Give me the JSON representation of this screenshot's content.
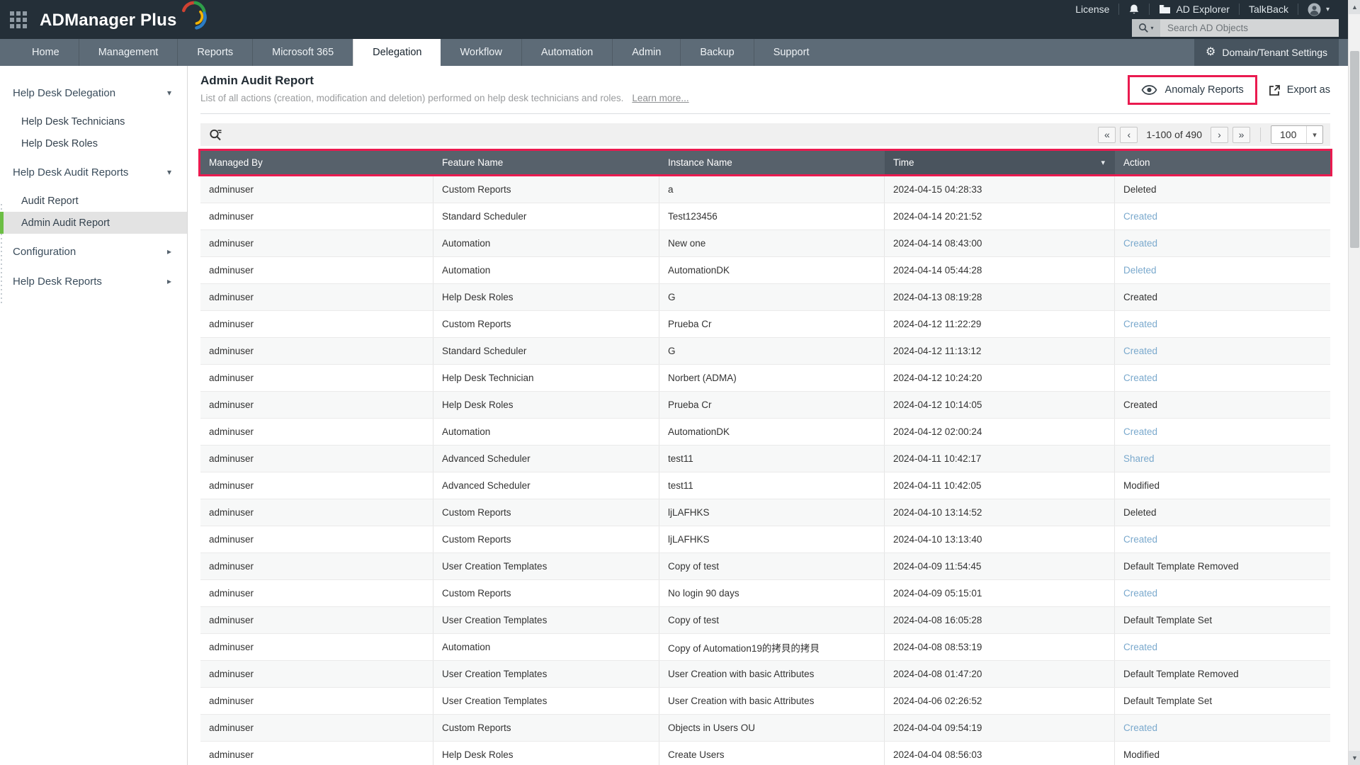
{
  "header": {
    "logo_text": "ADManager Plus",
    "license_label": "License",
    "ad_explorer_label": "AD Explorer",
    "talkback_label": "TalkBack",
    "search_placeholder": "Search AD Objects",
    "domain_settings_label": "Domain/Tenant Settings"
  },
  "nav": {
    "tabs": [
      {
        "label": "Home",
        "active": false
      },
      {
        "label": "Management",
        "active": false
      },
      {
        "label": "Reports",
        "active": false
      },
      {
        "label": "Microsoft 365",
        "active": false
      },
      {
        "label": "Delegation",
        "active": true
      },
      {
        "label": "Workflow",
        "active": false
      },
      {
        "label": "Automation",
        "active": false
      },
      {
        "label": "Admin",
        "active": false
      },
      {
        "label": "Backup",
        "active": false
      },
      {
        "label": "Support",
        "active": false
      }
    ]
  },
  "sidebar": {
    "items": [
      {
        "label": "Help Desk Delegation",
        "level": "group",
        "chevron": "down",
        "selected": false
      },
      {
        "label": "Help Desk Technicians",
        "level": "sub",
        "chevron": null,
        "selected": false,
        "first_sub": true
      },
      {
        "label": "Help Desk Roles",
        "level": "sub",
        "chevron": null,
        "selected": false
      },
      {
        "label": "Help Desk Audit Reports",
        "level": "group",
        "chevron": "down",
        "selected": false
      },
      {
        "label": "Audit Report",
        "level": "sub",
        "chevron": null,
        "selected": false,
        "first_sub": true
      },
      {
        "label": "Admin Audit Report",
        "level": "sub",
        "chevron": null,
        "selected": true
      },
      {
        "label": "Configuration",
        "level": "group",
        "chevron": "right",
        "selected": false
      },
      {
        "label": "Help Desk Reports",
        "level": "group",
        "chevron": "right",
        "selected": false
      }
    ]
  },
  "main": {
    "title": "Admin Audit Report",
    "subtitle": "List of all actions (creation, modification and deletion) performed on help desk technicians and roles.",
    "learn_more": "Learn more...",
    "anomaly_button_label": "Anomaly Reports",
    "export_button_label": "Export as",
    "pagination": {
      "first": "«",
      "prev": "‹",
      "range": "1-100 of 490",
      "next": "›",
      "last": "»",
      "page_size": "100"
    },
    "table": {
      "columns": [
        "Managed By",
        "Feature Name",
        "Instance Name",
        "Time",
        "Action"
      ],
      "sorted_column": "Time",
      "rows": [
        {
          "managed_by": "adminuser",
          "feature": "Custom Reports",
          "instance": "a",
          "time": "2024-04-15 04:28:33",
          "action": "Deleted",
          "action_is_link": false
        },
        {
          "managed_by": "adminuser",
          "feature": "Standard Scheduler",
          "instance": "Test123456",
          "time": "2024-04-14 20:21:52",
          "action": "Created",
          "action_is_link": true
        },
        {
          "managed_by": "adminuser",
          "feature": "Automation",
          "instance": "New one",
          "time": "2024-04-14 08:43:00",
          "action": "Created",
          "action_is_link": true
        },
        {
          "managed_by": "adminuser",
          "feature": "Automation",
          "instance": "AutomationDK",
          "time": "2024-04-14 05:44:28",
          "action": "Deleted",
          "action_is_link": true
        },
        {
          "managed_by": "adminuser",
          "feature": "Help Desk Roles",
          "instance": "G",
          "time": "2024-04-13 08:19:28",
          "action": "Created",
          "action_is_link": false
        },
        {
          "managed_by": "adminuser",
          "feature": "Custom Reports",
          "instance": "Prueba Cr",
          "time": "2024-04-12 11:22:29",
          "action": "Created",
          "action_is_link": true
        },
        {
          "managed_by": "adminuser",
          "feature": "Standard Scheduler",
          "instance": "G",
          "time": "2024-04-12 11:13:12",
          "action": "Created",
          "action_is_link": true
        },
        {
          "managed_by": "adminuser",
          "feature": "Help Desk Technician",
          "instance": "Norbert (ADMA)",
          "time": "2024-04-12 10:24:20",
          "action": "Created",
          "action_is_link": true
        },
        {
          "managed_by": "adminuser",
          "feature": "Help Desk Roles",
          "instance": "Prueba Cr",
          "time": "2024-04-12 10:14:05",
          "action": "Created",
          "action_is_link": false
        },
        {
          "managed_by": "adminuser",
          "feature": "Automation",
          "instance": "AutomationDK",
          "time": "2024-04-12 02:00:24",
          "action": "Created",
          "action_is_link": true
        },
        {
          "managed_by": "adminuser",
          "feature": "Advanced Scheduler",
          "instance": "test11",
          "time": "2024-04-11 10:42:17",
          "action": "Shared",
          "action_is_link": true
        },
        {
          "managed_by": "adminuser",
          "feature": "Advanced Scheduler",
          "instance": "test11",
          "time": "2024-04-11 10:42:05",
          "action": "Modified",
          "action_is_link": false
        },
        {
          "managed_by": "adminuser",
          "feature": "Custom Reports",
          "instance": "ljLAFHKS",
          "time": "2024-04-10 13:14:52",
          "action": "Deleted",
          "action_is_link": false
        },
        {
          "managed_by": "adminuser",
          "feature": "Custom Reports",
          "instance": "ljLAFHKS",
          "time": "2024-04-10 13:13:40",
          "action": "Created",
          "action_is_link": true
        },
        {
          "managed_by": "adminuser",
          "feature": "User Creation Templates",
          "instance": "Copy of test",
          "time": "2024-04-09 11:54:45",
          "action": "Default Template Removed",
          "action_is_link": false
        },
        {
          "managed_by": "adminuser",
          "feature": "Custom Reports",
          "instance": "No login 90 days",
          "time": "2024-04-09 05:15:01",
          "action": "Created",
          "action_is_link": true
        },
        {
          "managed_by": "adminuser",
          "feature": "User Creation Templates",
          "instance": "Copy of test",
          "time": "2024-04-08 16:05:28",
          "action": "Default Template Set",
          "action_is_link": false
        },
        {
          "managed_by": "adminuser",
          "feature": "Automation",
          "instance": "Copy of Automation19的拷貝的拷貝",
          "time": "2024-04-08 08:53:19",
          "action": "Created",
          "action_is_link": true
        },
        {
          "managed_by": "adminuser",
          "feature": "User Creation Templates",
          "instance": "User Creation with basic Attributes",
          "time": "2024-04-08 01:47:20",
          "action": "Default Template Removed",
          "action_is_link": false
        },
        {
          "managed_by": "adminuser",
          "feature": "User Creation Templates",
          "instance": "User Creation with basic Attributes",
          "time": "2024-04-06 02:26:52",
          "action": "Default Template Set",
          "action_is_link": false
        },
        {
          "managed_by": "adminuser",
          "feature": "Custom Reports",
          "instance": "Objects in Users OU",
          "time": "2024-04-04 09:54:19",
          "action": "Created",
          "action_is_link": true
        },
        {
          "managed_by": "adminuser",
          "feature": "Help Desk Roles",
          "instance": "Create Users",
          "time": "2024-04-04 08:56:03",
          "action": "Modified",
          "action_is_link": false
        }
      ]
    }
  },
  "colors": {
    "annotation_red": "#ea1a4f",
    "header_dark": "#242f38",
    "navbar": "#5d6b77",
    "table_header": "#57616b",
    "table_header_sorted": "#4a545e",
    "sidebar_selected_green": "#6cbe44",
    "action_link_blue": "#7aa9cd"
  }
}
